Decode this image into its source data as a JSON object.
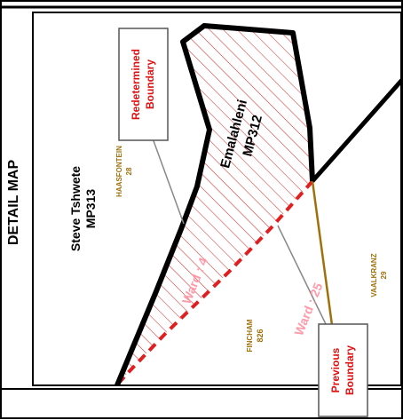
{
  "side_title": "DETAIL MAP",
  "municipalities": {
    "west": {
      "name": "Steve Tshwete",
      "code": "MP313"
    },
    "east": {
      "name": "Emalahleni",
      "code": "MP312"
    }
  },
  "farms": [
    {
      "name": "HAASFONTEIN",
      "number": "28"
    },
    {
      "name": "FINCHAM",
      "number": "826"
    },
    {
      "name": "VAALKRANZ",
      "number": "29"
    }
  ],
  "wards": {
    "left": "Ward : 4",
    "right": "Ward : 25"
  },
  "callouts": {
    "redetermined": {
      "line1": "Redetermined",
      "line2": "Boundary"
    },
    "previous": {
      "line1": "Previous",
      "line2": "Boundary"
    }
  },
  "colors": {
    "boundary": "#000000",
    "hatch": "#e02020",
    "previous_boundary_dash": "#e02020",
    "farm_label": "#a0700a",
    "farm_boundary": "#a0700a",
    "ward_label": "#ff9aa8",
    "callout_text": "#e01010",
    "leader": "#808080"
  }
}
